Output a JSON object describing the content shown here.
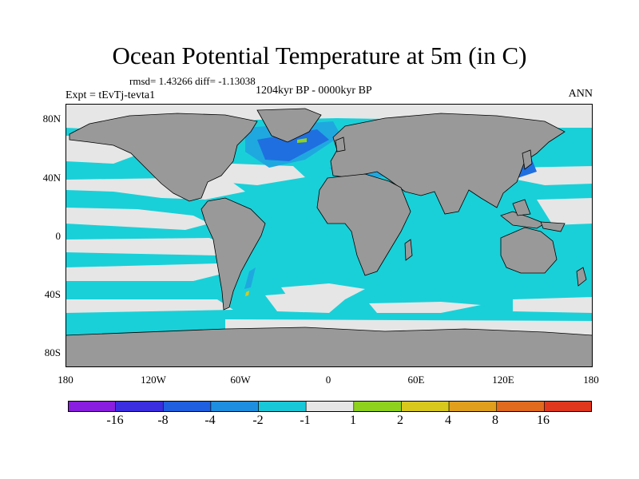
{
  "title": "Ocean Potential Temperature at 5m (in C)",
  "stats": "rmsd= 1.43266 diff= -1.13038",
  "experiment": "Expt = tEvTj-tevta1",
  "period": "1204kyr BP - 0000kyr BP",
  "season": "ANN",
  "lat_ticks": [
    "80N",
    "40N",
    "0",
    "40S",
    "80S"
  ],
  "lon_ticks": [
    "180",
    "120W",
    "60W",
    "0",
    "60E",
    "120E",
    "180"
  ],
  "colorbar": {
    "labels": [
      "-16",
      "-8",
      "-4",
      "-2",
      "-1",
      "1",
      "2",
      "4",
      "8",
      "16"
    ],
    "colors": [
      "#8a1ee0",
      "#3b2ee0",
      "#1f5fe0",
      "#1e8fe0",
      "#19c8d8",
      "#e6e6e6",
      "#8fd21e",
      "#d8c81e",
      "#e0a01e",
      "#e06a1e",
      "#e0381e"
    ]
  },
  "map_colors": {
    "land": "#999999",
    "neutral": "#e6e6e6",
    "cyan": "#19d0d8",
    "light_blue": "#1fa8e0",
    "blue": "#1f6fe0",
    "green": "#8fd21e",
    "yellow": "#d8c81e"
  }
}
